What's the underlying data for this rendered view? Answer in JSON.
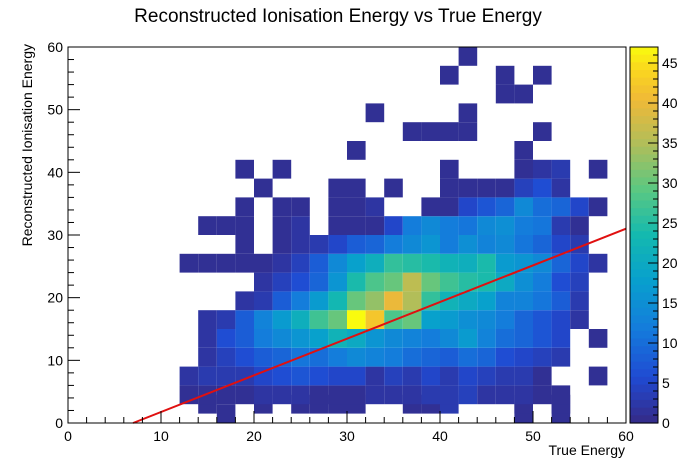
{
  "chart_data": {
    "type": "heatmap",
    "title": "Reconstructed Ionisation Energy vs True Energy",
    "xlabel": "True Energy",
    "ylabel": "Reconstructed Ionisation Energy",
    "xlim": [
      0,
      60
    ],
    "ylim": [
      0,
      60
    ],
    "bin_width": 2,
    "bin_height": 3,
    "x_ticks": [
      0,
      10,
      20,
      30,
      40,
      50,
      60
    ],
    "y_ticks": [
      0,
      10,
      20,
      30,
      40,
      50,
      60
    ],
    "colorbar": {
      "range": [
        0,
        47
      ],
      "ticks": [
        0,
        5,
        10,
        15,
        20,
        25,
        30,
        35,
        40,
        45
      ]
    },
    "fit_line": {
      "color": "#e01010",
      "points": [
        [
          7,
          0
        ],
        [
          60,
          31
        ]
      ]
    },
    "bins": [
      [
        16,
        0,
        1
      ],
      [
        48,
        0,
        1
      ],
      [
        52,
        0,
        1
      ],
      [
        14,
        1.5,
        1
      ],
      [
        20,
        1.5,
        1
      ],
      [
        24,
        1.5,
        1
      ],
      [
        26,
        1.5,
        1
      ],
      [
        28,
        1.5,
        1
      ],
      [
        30,
        1.5,
        1
      ],
      [
        36,
        1.5,
        1
      ],
      [
        38,
        1.5,
        1
      ],
      [
        40,
        1.5,
        3
      ],
      [
        48,
        1.5,
        1
      ],
      [
        52,
        1.5,
        1
      ],
      [
        12,
        3,
        1
      ],
      [
        14,
        3,
        1
      ],
      [
        16,
        3,
        1
      ],
      [
        18,
        3,
        1
      ],
      [
        20,
        3,
        2
      ],
      [
        22,
        3,
        2
      ],
      [
        24,
        3,
        2
      ],
      [
        26,
        3,
        1
      ],
      [
        28,
        3,
        1
      ],
      [
        30,
        3,
        1
      ],
      [
        32,
        3,
        2
      ],
      [
        34,
        3,
        2
      ],
      [
        36,
        3,
        2
      ],
      [
        38,
        3,
        3
      ],
      [
        40,
        3,
        3
      ],
      [
        42,
        3,
        4
      ],
      [
        44,
        3,
        2
      ],
      [
        46,
        3,
        2
      ],
      [
        48,
        3,
        2
      ],
      [
        50,
        3,
        1
      ],
      [
        52,
        3,
        1
      ],
      [
        12,
        6,
        2
      ],
      [
        14,
        6,
        3
      ],
      [
        16,
        6,
        3
      ],
      [
        18,
        6,
        3
      ],
      [
        20,
        6,
        5
      ],
      [
        22,
        6,
        6
      ],
      [
        24,
        6,
        7
      ],
      [
        26,
        6,
        6
      ],
      [
        28,
        6,
        5
      ],
      [
        30,
        6,
        5
      ],
      [
        32,
        6,
        2
      ],
      [
        34,
        6,
        4
      ],
      [
        36,
        6,
        3
      ],
      [
        38,
        6,
        5
      ],
      [
        40,
        6,
        3
      ],
      [
        42,
        6,
        5
      ],
      [
        44,
        6,
        4
      ],
      [
        46,
        6,
        3
      ],
      [
        48,
        6,
        3
      ],
      [
        50,
        6,
        1
      ],
      [
        56,
        6,
        1
      ],
      [
        14,
        9,
        2
      ],
      [
        16,
        9,
        4
      ],
      [
        18,
        9,
        6
      ],
      [
        20,
        9,
        8
      ],
      [
        22,
        9,
        9
      ],
      [
        24,
        9,
        11
      ],
      [
        26,
        9,
        10
      ],
      [
        28,
        9,
        12
      ],
      [
        30,
        9,
        14
      ],
      [
        32,
        9,
        13
      ],
      [
        34,
        9,
        12
      ],
      [
        36,
        9,
        10
      ],
      [
        38,
        9,
        9
      ],
      [
        40,
        9,
        8
      ],
      [
        42,
        9,
        10
      ],
      [
        44,
        9,
        9
      ],
      [
        46,
        9,
        6
      ],
      [
        48,
        9,
        5
      ],
      [
        50,
        9,
        4
      ],
      [
        52,
        9,
        3
      ],
      [
        14,
        12,
        2
      ],
      [
        16,
        12,
        6
      ],
      [
        18,
        12,
        8
      ],
      [
        20,
        12,
        12
      ],
      [
        22,
        12,
        14
      ],
      [
        24,
        12,
        16
      ],
      [
        26,
        12,
        18
      ],
      [
        28,
        12,
        22
      ],
      [
        30,
        12,
        20
      ],
      [
        32,
        12,
        16
      ],
      [
        34,
        12,
        14
      ],
      [
        36,
        12,
        13
      ],
      [
        38,
        12,
        12
      ],
      [
        40,
        12,
        14
      ],
      [
        42,
        12,
        17
      ],
      [
        44,
        12,
        13
      ],
      [
        46,
        12,
        10
      ],
      [
        48,
        12,
        9
      ],
      [
        50,
        12,
        7
      ],
      [
        52,
        12,
        5
      ],
      [
        56,
        12,
        1
      ],
      [
        14,
        15,
        2
      ],
      [
        16,
        15,
        3
      ],
      [
        18,
        15,
        8
      ],
      [
        20,
        15,
        13
      ],
      [
        22,
        15,
        17
      ],
      [
        24,
        15,
        21
      ],
      [
        26,
        15,
        27
      ],
      [
        28,
        15,
        30
      ],
      [
        30,
        15,
        47
      ],
      [
        32,
        15,
        42
      ],
      [
        34,
        15,
        28
      ],
      [
        36,
        15,
        30
      ],
      [
        38,
        15,
        18
      ],
      [
        40,
        15,
        17
      ],
      [
        42,
        15,
        15
      ],
      [
        44,
        15,
        14
      ],
      [
        46,
        15,
        12
      ],
      [
        48,
        15,
        9
      ],
      [
        50,
        15,
        7
      ],
      [
        52,
        15,
        5
      ],
      [
        54,
        15,
        2
      ],
      [
        18,
        18,
        2
      ],
      [
        20,
        18,
        3
      ],
      [
        22,
        18,
        8
      ],
      [
        24,
        18,
        12
      ],
      [
        26,
        18,
        17
      ],
      [
        28,
        18,
        23
      ],
      [
        30,
        18,
        30
      ],
      [
        32,
        18,
        33
      ],
      [
        34,
        18,
        40
      ],
      [
        36,
        18,
        35
      ],
      [
        38,
        18,
        26
      ],
      [
        40,
        18,
        22
      ],
      [
        42,
        18,
        20
      ],
      [
        44,
        18,
        18
      ],
      [
        46,
        18,
        13
      ],
      [
        48,
        18,
        13
      ],
      [
        50,
        18,
        11
      ],
      [
        52,
        18,
        8
      ],
      [
        54,
        18,
        3
      ],
      [
        20,
        21,
        2
      ],
      [
        22,
        21,
        4
      ],
      [
        24,
        21,
        6
      ],
      [
        26,
        21,
        9
      ],
      [
        28,
        21,
        16
      ],
      [
        30,
        21,
        24
      ],
      [
        32,
        21,
        28
      ],
      [
        34,
        21,
        30
      ],
      [
        36,
        21,
        36
      ],
      [
        38,
        21,
        30
      ],
      [
        40,
        21,
        27
      ],
      [
        42,
        21,
        25
      ],
      [
        44,
        21,
        24
      ],
      [
        46,
        21,
        20
      ],
      [
        48,
        21,
        15
      ],
      [
        50,
        21,
        12
      ],
      [
        52,
        21,
        6
      ],
      [
        54,
        21,
        4
      ],
      [
        12,
        24,
        1
      ],
      [
        14,
        24,
        1
      ],
      [
        16,
        24,
        1
      ],
      [
        18,
        24,
        1
      ],
      [
        20,
        24,
        1
      ],
      [
        22,
        24,
        2
      ],
      [
        24,
        24,
        4
      ],
      [
        26,
        24,
        8
      ],
      [
        28,
        24,
        14
      ],
      [
        30,
        24,
        18
      ],
      [
        32,
        24,
        21
      ],
      [
        34,
        24,
        26
      ],
      [
        36,
        24,
        25
      ],
      [
        38,
        24,
        24
      ],
      [
        40,
        24,
        22
      ],
      [
        42,
        24,
        21
      ],
      [
        44,
        24,
        24
      ],
      [
        46,
        24,
        17
      ],
      [
        48,
        24,
        16
      ],
      [
        50,
        24,
        14
      ],
      [
        52,
        24,
        9
      ],
      [
        54,
        24,
        5
      ],
      [
        56,
        24,
        2
      ],
      [
        18,
        27,
        1
      ],
      [
        22,
        27,
        1
      ],
      [
        24,
        27,
        2
      ],
      [
        26,
        27,
        3
      ],
      [
        28,
        27,
        5
      ],
      [
        30,
        27,
        8
      ],
      [
        32,
        27,
        9
      ],
      [
        34,
        27,
        12
      ],
      [
        36,
        27,
        14
      ],
      [
        38,
        27,
        16
      ],
      [
        40,
        27,
        12
      ],
      [
        42,
        27,
        15
      ],
      [
        44,
        27,
        13
      ],
      [
        46,
        27,
        14
      ],
      [
        48,
        27,
        11
      ],
      [
        50,
        27,
        9
      ],
      [
        52,
        27,
        5
      ],
      [
        54,
        27,
        3
      ],
      [
        14,
        30,
        1
      ],
      [
        16,
        30,
        1
      ],
      [
        18,
        30,
        1
      ],
      [
        22,
        30,
        1
      ],
      [
        24,
        30,
        2
      ],
      [
        28,
        30,
        1
      ],
      [
        30,
        30,
        1
      ],
      [
        32,
        30,
        1
      ],
      [
        34,
        30,
        5
      ],
      [
        36,
        30,
        12
      ],
      [
        38,
        30,
        14
      ],
      [
        40,
        30,
        12
      ],
      [
        42,
        30,
        11
      ],
      [
        44,
        30,
        14
      ],
      [
        46,
        30,
        15
      ],
      [
        48,
        30,
        12
      ],
      [
        50,
        30,
        11
      ],
      [
        52,
        30,
        3
      ],
      [
        54,
        30,
        1
      ],
      [
        18,
        33,
        1
      ],
      [
        22,
        33,
        1
      ],
      [
        24,
        33,
        1
      ],
      [
        28,
        33,
        1
      ],
      [
        30,
        33,
        1
      ],
      [
        32,
        33,
        2
      ],
      [
        38,
        33,
        1
      ],
      [
        40,
        33,
        1
      ],
      [
        42,
        33,
        5
      ],
      [
        44,
        33,
        7
      ],
      [
        46,
        33,
        9
      ],
      [
        48,
        33,
        14
      ],
      [
        50,
        33,
        10
      ],
      [
        52,
        33,
        9
      ],
      [
        54,
        33,
        5
      ],
      [
        56,
        33,
        1
      ],
      [
        20,
        36,
        1
      ],
      [
        28,
        36,
        1
      ],
      [
        30,
        36,
        1
      ],
      [
        34,
        36,
        1
      ],
      [
        40,
        36,
        1
      ],
      [
        42,
        36,
        1
      ],
      [
        44,
        36,
        1
      ],
      [
        46,
        36,
        1
      ],
      [
        48,
        36,
        4
      ],
      [
        50,
        36,
        6
      ],
      [
        52,
        36,
        2
      ],
      [
        18,
        39,
        1
      ],
      [
        22,
        39,
        1
      ],
      [
        40,
        39,
        1
      ],
      [
        48,
        39,
        1
      ],
      [
        50,
        39,
        2
      ],
      [
        52,
        39,
        3
      ],
      [
        56,
        39,
        1
      ],
      [
        30,
        42,
        1
      ],
      [
        48,
        42,
        1
      ],
      [
        36,
        45,
        1
      ],
      [
        38,
        45,
        1
      ],
      [
        40,
        45,
        1
      ],
      [
        42,
        45,
        1
      ],
      [
        50,
        45,
        1
      ],
      [
        32,
        48,
        1
      ],
      [
        42,
        48,
        1
      ],
      [
        46,
        51,
        1
      ],
      [
        48,
        51,
        1
      ],
      [
        40,
        54,
        1
      ],
      [
        46,
        54,
        1
      ],
      [
        50,
        54,
        1
      ],
      [
        42,
        57,
        1
      ],
      [
        32,
        60,
        1
      ],
      [
        42,
        60,
        1
      ]
    ]
  }
}
